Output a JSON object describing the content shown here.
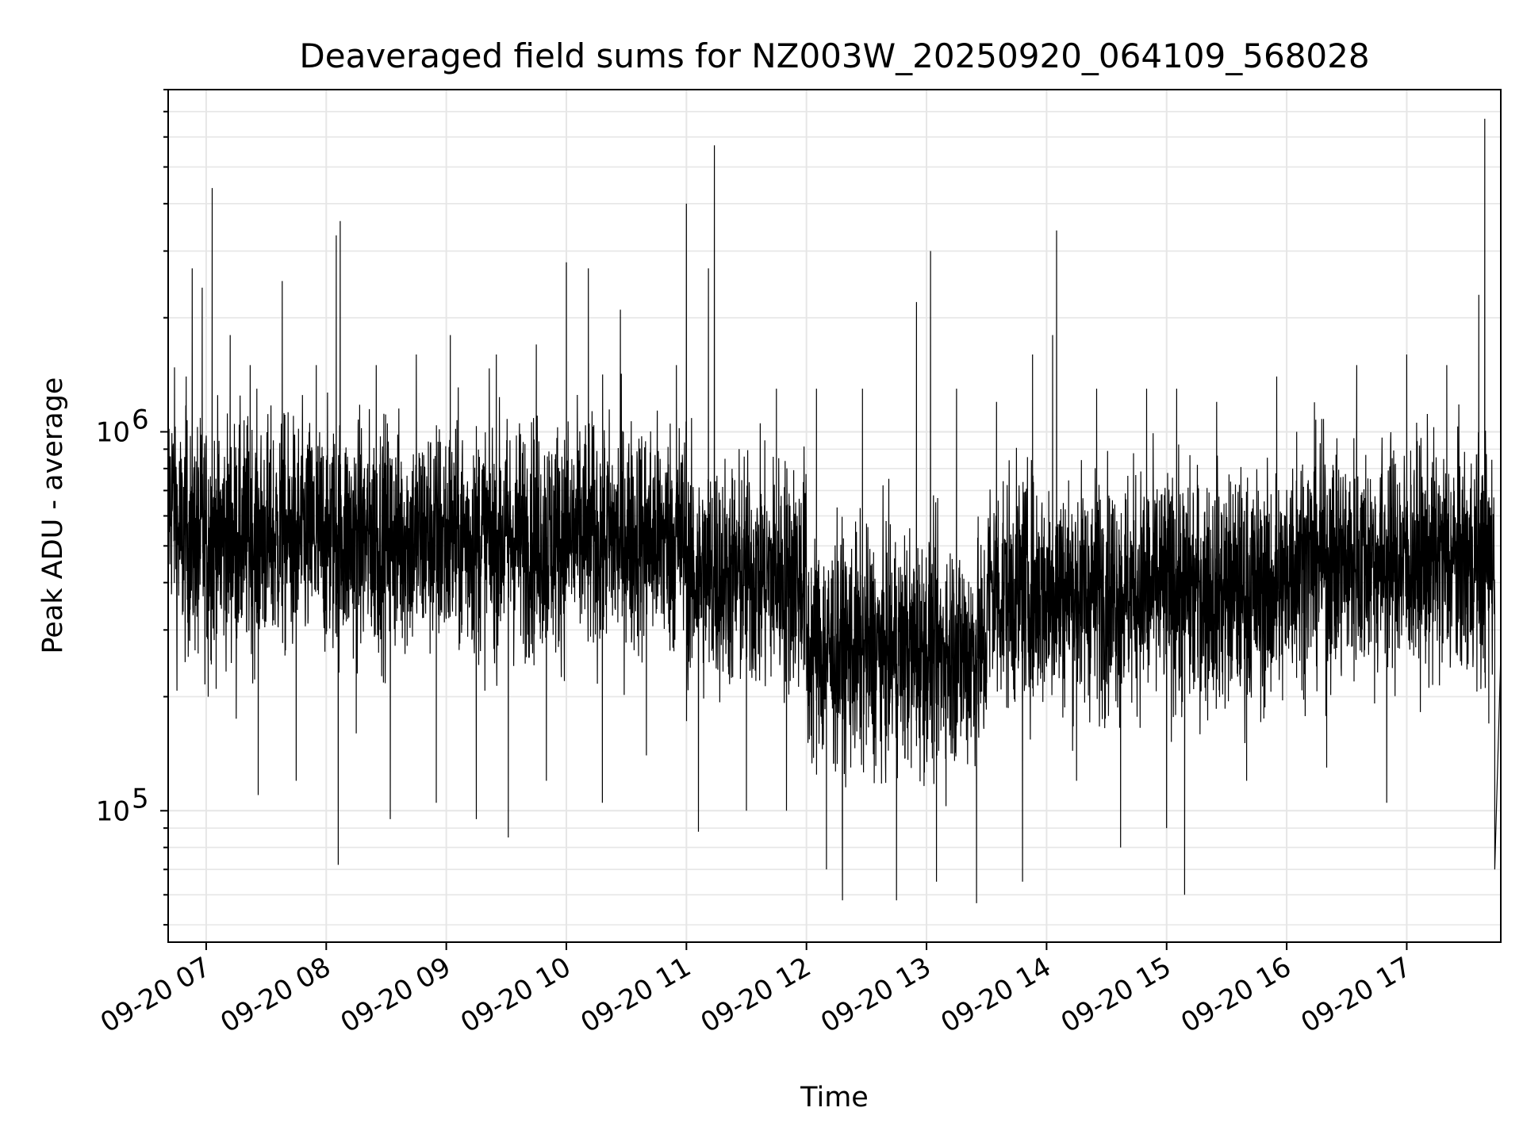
{
  "chart_data": {
    "type": "line",
    "title": "Deaveraged field sums for NZ003W_20250920_064109_568028",
    "xlabel": "Time",
    "ylabel": "Peak ADU - average",
    "y_scale": "log",
    "ylim": [
      45000,
      8000000
    ],
    "xlim": [
      "2025-09-20 06:41",
      "2025-09-20 17:47"
    ],
    "grid": true,
    "line_color": "#000000",
    "grid_color": "#e6e6e6",
    "x_ticks": [
      {
        "value": "2025-09-20 07:00",
        "label": "09-20 07"
      },
      {
        "value": "2025-09-20 08:00",
        "label": "09-20 08"
      },
      {
        "value": "2025-09-20 09:00",
        "label": "09-20 09"
      },
      {
        "value": "2025-09-20 10:00",
        "label": "09-20 10"
      },
      {
        "value": "2025-09-20 11:00",
        "label": "09-20 11"
      },
      {
        "value": "2025-09-20 12:00",
        "label": "09-20 12"
      },
      {
        "value": "2025-09-20 13:00",
        "label": "09-20 13"
      },
      {
        "value": "2025-09-20 14:00",
        "label": "09-20 14"
      },
      {
        "value": "2025-09-20 15:00",
        "label": "09-20 15"
      },
      {
        "value": "2025-09-20 16:00",
        "label": "09-20 16"
      },
      {
        "value": "2025-09-20 17:00",
        "label": "09-20 17"
      }
    ],
    "y_ticks": [
      {
        "value": 100000,
        "label": "10",
        "exp": "5"
      },
      {
        "value": 1000000,
        "label": "10",
        "exp": "6"
      }
    ],
    "series": [
      {
        "points": [
          [
            "2025-09-20 06:41",
            720000
          ],
          [
            "2025-09-20 06:46",
            550000
          ],
          [
            "2025-09-20 06:50",
            1400000
          ],
          [
            "2025-09-20 06:53",
            2700000
          ],
          [
            "2025-09-20 06:56",
            260000
          ],
          [
            "2025-09-20 06:58",
            2400000
          ],
          [
            "2025-09-20 07:01",
            200000
          ],
          [
            "2025-09-20 07:03",
            4400000
          ],
          [
            "2025-09-20 07:05",
            700000
          ],
          [
            "2025-09-20 07:12",
            1800000
          ],
          [
            "2025-09-20 07:15",
            175000
          ],
          [
            "2025-09-20 07:22",
            1500000
          ],
          [
            "2025-09-20 07:26",
            110000
          ],
          [
            "2025-09-20 07:38",
            2500000
          ],
          [
            "2025-09-20 07:45",
            120000
          ],
          [
            "2025-09-20 07:55",
            1500000
          ],
          [
            "2025-09-20 08:05",
            3300000
          ],
          [
            "2025-09-20 08:06",
            72000
          ],
          [
            "2025-09-20 08:07",
            3600000
          ],
          [
            "2025-09-20 08:15",
            160000
          ],
          [
            "2025-09-20 08:25",
            1500000
          ],
          [
            "2025-09-20 08:32",
            95000
          ],
          [
            "2025-09-20 08:45",
            1600000
          ],
          [
            "2025-09-20 08:55",
            105000
          ],
          [
            "2025-09-20 09:02",
            1800000
          ],
          [
            "2025-09-20 09:15",
            95000
          ],
          [
            "2025-09-20 09:25",
            1600000
          ],
          [
            "2025-09-20 09:31",
            85000
          ],
          [
            "2025-09-20 09:45",
            1700000
          ],
          [
            "2025-09-20 09:50",
            120000
          ],
          [
            "2025-09-20 10:00",
            2800000
          ],
          [
            "2025-09-20 10:11",
            2700000
          ],
          [
            "2025-09-20 10:18",
            105000
          ],
          [
            "2025-09-20 10:27",
            2100000
          ],
          [
            "2025-09-20 10:40",
            140000
          ],
          [
            "2025-09-20 10:55",
            1500000
          ],
          [
            "2025-09-20 11:00",
            4000000
          ],
          [
            "2025-09-20 11:06",
            88000
          ],
          [
            "2025-09-20 11:11",
            2700000
          ],
          [
            "2025-09-20 11:14",
            5700000
          ],
          [
            "2025-09-20 11:30",
            100000
          ],
          [
            "2025-09-20 11:45",
            1300000
          ],
          [
            "2025-09-20 11:50",
            100000
          ],
          [
            "2025-09-20 12:05",
            1300000
          ],
          [
            "2025-09-20 12:10",
            70000
          ],
          [
            "2025-09-20 12:18",
            58000
          ],
          [
            "2025-09-20 12:28",
            1300000
          ],
          [
            "2025-09-20 12:45",
            58000
          ],
          [
            "2025-09-20 12:55",
            2200000
          ],
          [
            "2025-09-20 13:02",
            3000000
          ],
          [
            "2025-09-20 13:05",
            65000
          ],
          [
            "2025-09-20 13:15",
            1300000
          ],
          [
            "2025-09-20 13:25",
            57000
          ],
          [
            "2025-09-20 13:35",
            1200000
          ],
          [
            "2025-09-20 13:48",
            65000
          ],
          [
            "2025-09-20 13:53",
            1600000
          ],
          [
            "2025-09-20 14:03",
            1800000
          ],
          [
            "2025-09-20 14:05",
            3400000
          ],
          [
            "2025-09-20 14:15",
            120000
          ],
          [
            "2025-09-20 14:25",
            1300000
          ],
          [
            "2025-09-20 14:37",
            80000
          ],
          [
            "2025-09-20 14:50",
            1300000
          ],
          [
            "2025-09-20 15:00",
            90000
          ],
          [
            "2025-09-20 15:05",
            1300000
          ],
          [
            "2025-09-20 15:09",
            60000
          ],
          [
            "2025-09-20 15:25",
            1200000
          ],
          [
            "2025-09-20 15:40",
            120000
          ],
          [
            "2025-09-20 15:55",
            1400000
          ],
          [
            "2025-09-20 16:05",
            1000000
          ],
          [
            "2025-09-20 16:20",
            130000
          ],
          [
            "2025-09-20 16:35",
            1500000
          ],
          [
            "2025-09-20 16:50",
            105000
          ],
          [
            "2025-09-20 17:00",
            1600000
          ],
          [
            "2025-09-20 17:10",
            300000
          ],
          [
            "2025-09-20 17:20",
            1500000
          ],
          [
            "2025-09-20 17:30",
            330000
          ],
          [
            "2025-09-20 17:36",
            2300000
          ],
          [
            "2025-09-20 17:39",
            6700000
          ],
          [
            "2025-09-20 17:41",
            170000
          ],
          [
            "2025-09-20 17:44",
            70000
          ],
          [
            "2025-09-20 17:47",
            260000
          ]
        ]
      }
    ]
  }
}
